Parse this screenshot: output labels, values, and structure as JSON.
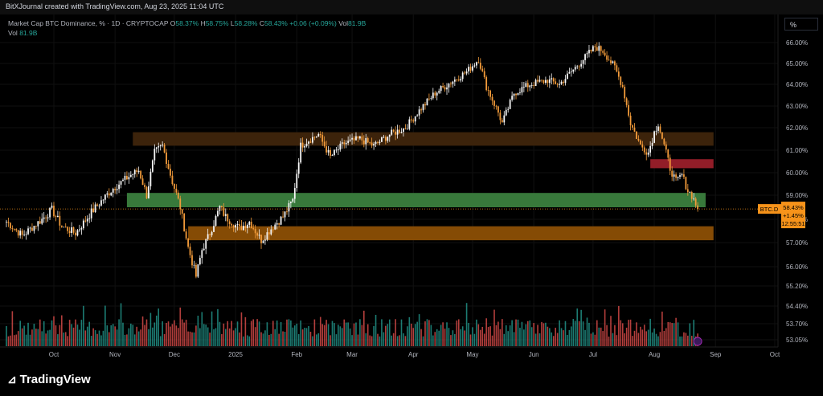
{
  "header": {
    "attribution": "BitXJournal created with TradingView.com, Aug 23, 2025 11:04 UTC"
  },
  "legend": {
    "symbol": "Market Cap BTC Dominance, % · 1D · CRYPTOCAP",
    "o_label": "O",
    "o_value": "58.37%",
    "h_label": "H",
    "h_value": "58.75%",
    "l_label": "L",
    "l_value": "58.28%",
    "c_label": "C",
    "c_value": "58.43%",
    "change": "+0.06 (+0.09%)",
    "vol_label": "Vol",
    "vol_value": "81.9B",
    "vol2_label": "Vol",
    "vol2_value": "81.9B"
  },
  "axis_unit": "%",
  "price_tag": {
    "symbol": "BTC.D",
    "price": "58.43%",
    "change": "+1.45%",
    "countdown": "12:55:51"
  },
  "footer": {
    "logo_text": "TradingView"
  },
  "colors": {
    "up": "#f7f7f7",
    "down": "#f29b3a",
    "vol_up": "#26a69a",
    "vol_down": "#ef5350",
    "zone_brown": "#3f250c",
    "zone_green": "#3b7f3e",
    "zone_orange": "#8c4f05",
    "zone_red": "#9a1f2a",
    "price_tag": "#f7931a"
  },
  "chart_data": {
    "type": "candlestick",
    "title": "Market Cap BTC Dominance, % · 1D · CRYPTOCAP",
    "y_unit": "%",
    "ylim": [
      52.8,
      66.6
    ],
    "y_ticks": [
      "66.00%",
      "65.00%",
      "64.00%",
      "63.00%",
      "62.00%",
      "61.00%",
      "60.00%",
      "59.00%",
      "58.00%",
      "57.00%",
      "56.00%",
      "55.20%",
      "54.40%",
      "53.70%",
      "53.05%"
    ],
    "x_ticks": [
      "Oct",
      "Nov",
      "Dec",
      "2025",
      "Feb",
      "Mar",
      "Apr",
      "May",
      "Jun",
      "Jul",
      "Aug",
      "Sep",
      "Oct"
    ],
    "zones": [
      {
        "name": "brown resistance",
        "from": "2024-11-10",
        "to": "2025-08-31",
        "low": 61.2,
        "high": 61.8
      },
      {
        "name": "green support",
        "from": "2024-11-07",
        "to": "2025-08-27",
        "low": 58.5,
        "high": 59.1
      },
      {
        "name": "orange support",
        "from": "2024-12-08",
        "to": "2025-08-31",
        "low": 57.1,
        "high": 57.7
      },
      {
        "name": "red resistance",
        "from": "2025-07-30",
        "to": "2025-08-31",
        "low": 60.2,
        "high": 60.6
      }
    ],
    "anchors": [
      [
        "2024-09-07",
        57.9
      ],
      [
        "2024-09-15",
        57.3
      ],
      [
        "2024-09-25",
        58.0
      ],
      [
        "2024-09-30",
        58.4
      ],
      [
        "2024-10-05",
        57.7
      ],
      [
        "2024-10-12",
        57.4
      ],
      [
        "2024-10-20",
        58.3
      ],
      [
        "2024-10-31",
        59.3
      ],
      [
        "2024-11-09",
        59.9
      ],
      [
        "2024-11-13",
        60.1
      ],
      [
        "2024-11-17",
        59.0
      ],
      [
        "2024-11-21",
        60.9
      ],
      [
        "2024-11-25",
        61.2
      ],
      [
        "2024-11-30",
        59.6
      ],
      [
        "2024-12-04",
        58.5
      ],
      [
        "2024-12-08",
        56.8
      ],
      [
        "2024-12-12",
        55.6
      ],
      [
        "2024-12-15",
        56.7
      ],
      [
        "2024-12-19",
        57.4
      ],
      [
        "2024-12-24",
        58.5
      ],
      [
        "2024-12-27",
        58.1
      ],
      [
        "2025-01-03",
        57.6
      ],
      [
        "2025-01-08",
        57.9
      ],
      [
        "2025-01-14",
        57.1
      ],
      [
        "2025-01-20",
        57.7
      ],
      [
        "2025-01-25",
        58.1
      ],
      [
        "2025-01-30",
        58.8
      ],
      [
        "2025-02-03",
        61.2
      ],
      [
        "2025-02-06",
        61.4
      ],
      [
        "2025-02-12",
        61.7
      ],
      [
        "2025-02-18",
        60.7
      ],
      [
        "2025-02-25",
        61.3
      ],
      [
        "2025-03-05",
        61.5
      ],
      [
        "2025-03-12",
        61.2
      ],
      [
        "2025-03-20",
        61.7
      ],
      [
        "2025-03-28",
        62.0
      ],
      [
        "2025-04-05",
        62.9
      ],
      [
        "2025-04-12",
        63.6
      ],
      [
        "2025-04-20",
        64.1
      ],
      [
        "2025-04-28",
        64.6
      ],
      [
        "2025-05-04",
        65.2
      ],
      [
        "2025-05-08",
        63.9
      ],
      [
        "2025-05-14",
        62.7
      ],
      [
        "2025-05-16",
        62.2
      ],
      [
        "2025-05-22",
        63.6
      ],
      [
        "2025-05-30",
        64.0
      ],
      [
        "2025-06-08",
        64.2
      ],
      [
        "2025-06-14",
        64.0
      ],
      [
        "2025-06-20",
        64.6
      ],
      [
        "2025-06-26",
        65.2
      ],
      [
        "2025-07-02",
        65.8
      ],
      [
        "2025-07-06",
        65.6
      ],
      [
        "2025-07-12",
        64.8
      ],
      [
        "2025-07-16",
        63.9
      ],
      [
        "2025-07-20",
        62.2
      ],
      [
        "2025-07-25",
        61.2
      ],
      [
        "2025-07-29",
        60.9
      ],
      [
        "2025-08-01",
        61.8
      ],
      [
        "2025-08-03",
        62.2
      ],
      [
        "2025-08-06",
        61.2
      ],
      [
        "2025-08-09",
        60.2
      ],
      [
        "2025-08-12",
        59.6
      ],
      [
        "2025-08-15",
        59.9
      ],
      [
        "2025-08-18",
        59.2
      ],
      [
        "2025-08-20",
        59.0
      ],
      [
        "2025-08-23",
        58.43
      ]
    ]
  }
}
